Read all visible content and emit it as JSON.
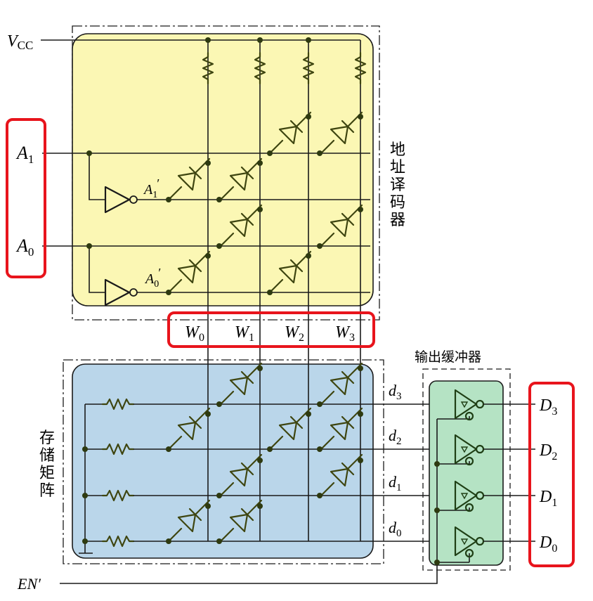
{
  "labels": {
    "vcc": "V",
    "vcc_sub": "CC",
    "a1": "A",
    "a1_sub": "1",
    "a0": "A",
    "a0_sub": "0",
    "a1p": "A",
    "a1p_sub": "1",
    "a0p": "A",
    "a0p_sub": "0",
    "prime": "′",
    "decoder_title": [
      "地",
      "址",
      "译",
      "码",
      "器"
    ],
    "memory_title": [
      "存",
      "储",
      "矩",
      "阵"
    ],
    "buffer_title": "输出缓冲器",
    "en": "EN′",
    "words": [
      {
        "main": "W",
        "sub": "0"
      },
      {
        "main": "W",
        "sub": "1"
      },
      {
        "main": "W",
        "sub": "2"
      },
      {
        "main": "W",
        "sub": "3"
      }
    ],
    "data_internal": [
      {
        "main": "d",
        "sub": "3"
      },
      {
        "main": "d",
        "sub": "2"
      },
      {
        "main": "d",
        "sub": "1"
      },
      {
        "main": "d",
        "sub": "0"
      }
    ],
    "data_out": [
      {
        "main": "D",
        "sub": "3"
      },
      {
        "main": "D",
        "sub": "2"
      },
      {
        "main": "D",
        "sub": "1"
      },
      {
        "main": "D",
        "sub": "0"
      }
    ]
  },
  "colors": {
    "decoder_fill": "#fbf7b4",
    "memory_fill": "#bad6ea",
    "buffer_fill": "#b5e3c4",
    "highlight": "#e8141c",
    "component": "#3e4510"
  }
}
